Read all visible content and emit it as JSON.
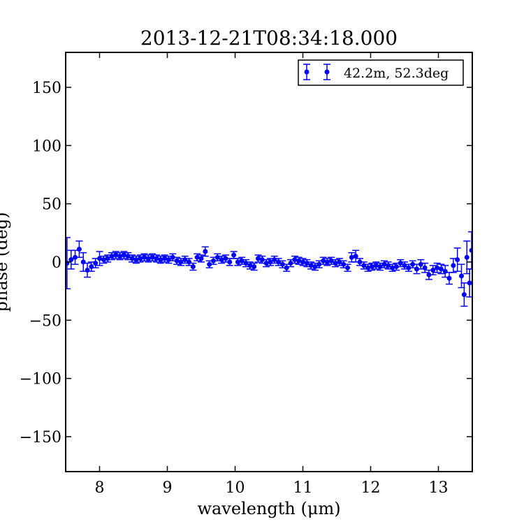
{
  "chart_data": {
    "type": "scatter",
    "title": "2013-12-21T08:34:18.000",
    "xlabel": "wavelength (μm)",
    "ylabel": "phase (deg)",
    "xlim": [
      7.5,
      13.5
    ],
    "ylim": [
      -180,
      180
    ],
    "xticks": [
      8,
      9,
      10,
      11,
      12,
      13
    ],
    "yticks": [
      -150,
      -100,
      -50,
      0,
      50,
      100,
      150
    ],
    "xtick_labels": [
      "8",
      "9",
      "10",
      "11",
      "12",
      "13"
    ],
    "ytick_labels": [
      "−150",
      "−100",
      "−50",
      "0",
      "50",
      "100",
      "150"
    ],
    "grid": false,
    "legend_position": "upper-right",
    "series": [
      {
        "name": "42.2m, 52.3deg",
        "color": "#0000ff",
        "points": [
          {
            "x": 7.52,
            "y": -1,
            "err": 22
          },
          {
            "x": 7.58,
            "y": 2,
            "err": 8
          },
          {
            "x": 7.64,
            "y": 4,
            "err": 6
          },
          {
            "x": 7.7,
            "y": 11,
            "err": 7
          },
          {
            "x": 7.76,
            "y": 0,
            "err": 8
          },
          {
            "x": 7.82,
            "y": -7,
            "err": 6
          },
          {
            "x": 7.88,
            "y": -4,
            "err": 4
          },
          {
            "x": 7.94,
            "y": -1,
            "err": 4
          },
          {
            "x": 8.0,
            "y": 3,
            "err": 6
          },
          {
            "x": 8.06,
            "y": 2,
            "err": 3
          },
          {
            "x": 8.12,
            "y": 3,
            "err": 3
          },
          {
            "x": 8.18,
            "y": 5,
            "err": 3
          },
          {
            "x": 8.24,
            "y": 6,
            "err": 3
          },
          {
            "x": 8.3,
            "y": 5,
            "err": 3
          },
          {
            "x": 8.36,
            "y": 6,
            "err": 3
          },
          {
            "x": 8.42,
            "y": 5,
            "err": 3
          },
          {
            "x": 8.48,
            "y": 3,
            "err": 3
          },
          {
            "x": 8.54,
            "y": 2,
            "err": 3
          },
          {
            "x": 8.6,
            "y": 3,
            "err": 3
          },
          {
            "x": 8.66,
            "y": 4,
            "err": 3
          },
          {
            "x": 8.72,
            "y": 3,
            "err": 3
          },
          {
            "x": 8.78,
            "y": 4,
            "err": 3
          },
          {
            "x": 8.84,
            "y": 3,
            "err": 3
          },
          {
            "x": 8.9,
            "y": 2,
            "err": 3
          },
          {
            "x": 8.96,
            "y": 3,
            "err": 3
          },
          {
            "x": 9.02,
            "y": 2,
            "err": 3
          },
          {
            "x": 9.08,
            "y": 4,
            "err": 3
          },
          {
            "x": 9.14,
            "y": 1,
            "err": 3
          },
          {
            "x": 9.2,
            "y": 0,
            "err": 3
          },
          {
            "x": 9.26,
            "y": 2,
            "err": 3
          },
          {
            "x": 9.32,
            "y": 0,
            "err": 3
          },
          {
            "x": 9.38,
            "y": -4,
            "err": 3
          },
          {
            "x": 9.44,
            "y": 4,
            "err": 3
          },
          {
            "x": 9.5,
            "y": 3,
            "err": 3
          },
          {
            "x": 9.56,
            "y": 9,
            "err": 4
          },
          {
            "x": 9.62,
            "y": -2,
            "err": 3
          },
          {
            "x": 9.68,
            "y": 1,
            "err": 3
          },
          {
            "x": 9.74,
            "y": 4,
            "err": 3
          },
          {
            "x": 9.8,
            "y": 2,
            "err": 3
          },
          {
            "x": 9.86,
            "y": 3,
            "err": 3
          },
          {
            "x": 9.92,
            "y": 0,
            "err": 3
          },
          {
            "x": 9.98,
            "y": 6,
            "err": 3
          },
          {
            "x": 10.04,
            "y": 0,
            "err": 3
          },
          {
            "x": 10.1,
            "y": 1,
            "err": 3
          },
          {
            "x": 10.16,
            "y": -1,
            "err": 3
          },
          {
            "x": 10.22,
            "y": -3,
            "err": 3
          },
          {
            "x": 10.28,
            "y": -4,
            "err": 3
          },
          {
            "x": 10.34,
            "y": 3,
            "err": 3
          },
          {
            "x": 10.4,
            "y": 2,
            "err": 3
          },
          {
            "x": 10.46,
            "y": -1,
            "err": 3
          },
          {
            "x": 10.52,
            "y": 0,
            "err": 3
          },
          {
            "x": 10.58,
            "y": 2,
            "err": 3
          },
          {
            "x": 10.64,
            "y": 0,
            "err": 3
          },
          {
            "x": 10.7,
            "y": -2,
            "err": 3
          },
          {
            "x": 10.76,
            "y": -5,
            "err": 3
          },
          {
            "x": 10.82,
            "y": -1,
            "err": 3
          },
          {
            "x": 10.88,
            "y": 2,
            "err": 3
          },
          {
            "x": 10.94,
            "y": 1,
            "err": 3
          },
          {
            "x": 11.0,
            "y": 0,
            "err": 3
          },
          {
            "x": 11.06,
            "y": -1,
            "err": 3
          },
          {
            "x": 11.12,
            "y": -3,
            "err": 3
          },
          {
            "x": 11.18,
            "y": -4,
            "err": 3
          },
          {
            "x": 11.24,
            "y": -2,
            "err": 3
          },
          {
            "x": 11.3,
            "y": 1,
            "err": 3
          },
          {
            "x": 11.36,
            "y": 0,
            "err": 3
          },
          {
            "x": 11.42,
            "y": 1,
            "err": 3
          },
          {
            "x": 11.48,
            "y": -1,
            "err": 3
          },
          {
            "x": 11.54,
            "y": 0,
            "err": 3
          },
          {
            "x": 11.6,
            "y": -2,
            "err": 3
          },
          {
            "x": 11.66,
            "y": -5,
            "err": 3
          },
          {
            "x": 11.72,
            "y": 4,
            "err": 4
          },
          {
            "x": 11.78,
            "y": 5,
            "err": 5
          },
          {
            "x": 11.84,
            "y": 0,
            "err": 3
          },
          {
            "x": 11.9,
            "y": -3,
            "err": 3
          },
          {
            "x": 11.96,
            "y": -5,
            "err": 3
          },
          {
            "x": 12.02,
            "y": -4,
            "err": 3
          },
          {
            "x": 12.08,
            "y": -3,
            "err": 3
          },
          {
            "x": 12.14,
            "y": -4,
            "err": 3
          },
          {
            "x": 12.2,
            "y": -2,
            "err": 3
          },
          {
            "x": 12.26,
            "y": -3,
            "err": 3
          },
          {
            "x": 12.32,
            "y": -5,
            "err": 3
          },
          {
            "x": 12.38,
            "y": -4,
            "err": 3
          },
          {
            "x": 12.44,
            "y": -1,
            "err": 3
          },
          {
            "x": 12.5,
            "y": -3,
            "err": 3
          },
          {
            "x": 12.56,
            "y": -5,
            "err": 3
          },
          {
            "x": 12.62,
            "y": -2,
            "err": 3
          },
          {
            "x": 12.68,
            "y": -6,
            "err": 4
          },
          {
            "x": 12.74,
            "y": -2,
            "err": 4
          },
          {
            "x": 12.8,
            "y": -5,
            "err": 4
          },
          {
            "x": 12.86,
            "y": -11,
            "err": 4
          },
          {
            "x": 12.92,
            "y": -7,
            "err": 4
          },
          {
            "x": 12.98,
            "y": -5,
            "err": 4
          },
          {
            "x": 13.04,
            "y": -6,
            "err": 4
          },
          {
            "x": 13.1,
            "y": -8,
            "err": 5
          },
          {
            "x": 13.16,
            "y": -14,
            "err": 5
          },
          {
            "x": 13.22,
            "y": -3,
            "err": 6
          },
          {
            "x": 13.28,
            "y": 2,
            "err": 10
          },
          {
            "x": 13.34,
            "y": -12,
            "err": 10
          },
          {
            "x": 13.38,
            "y": -28,
            "err": 10
          },
          {
            "x": 13.42,
            "y": 4,
            "err": 14
          },
          {
            "x": 13.46,
            "y": -18,
            "err": 12
          },
          {
            "x": 13.49,
            "y": 10,
            "err": 16
          }
        ]
      }
    ]
  }
}
